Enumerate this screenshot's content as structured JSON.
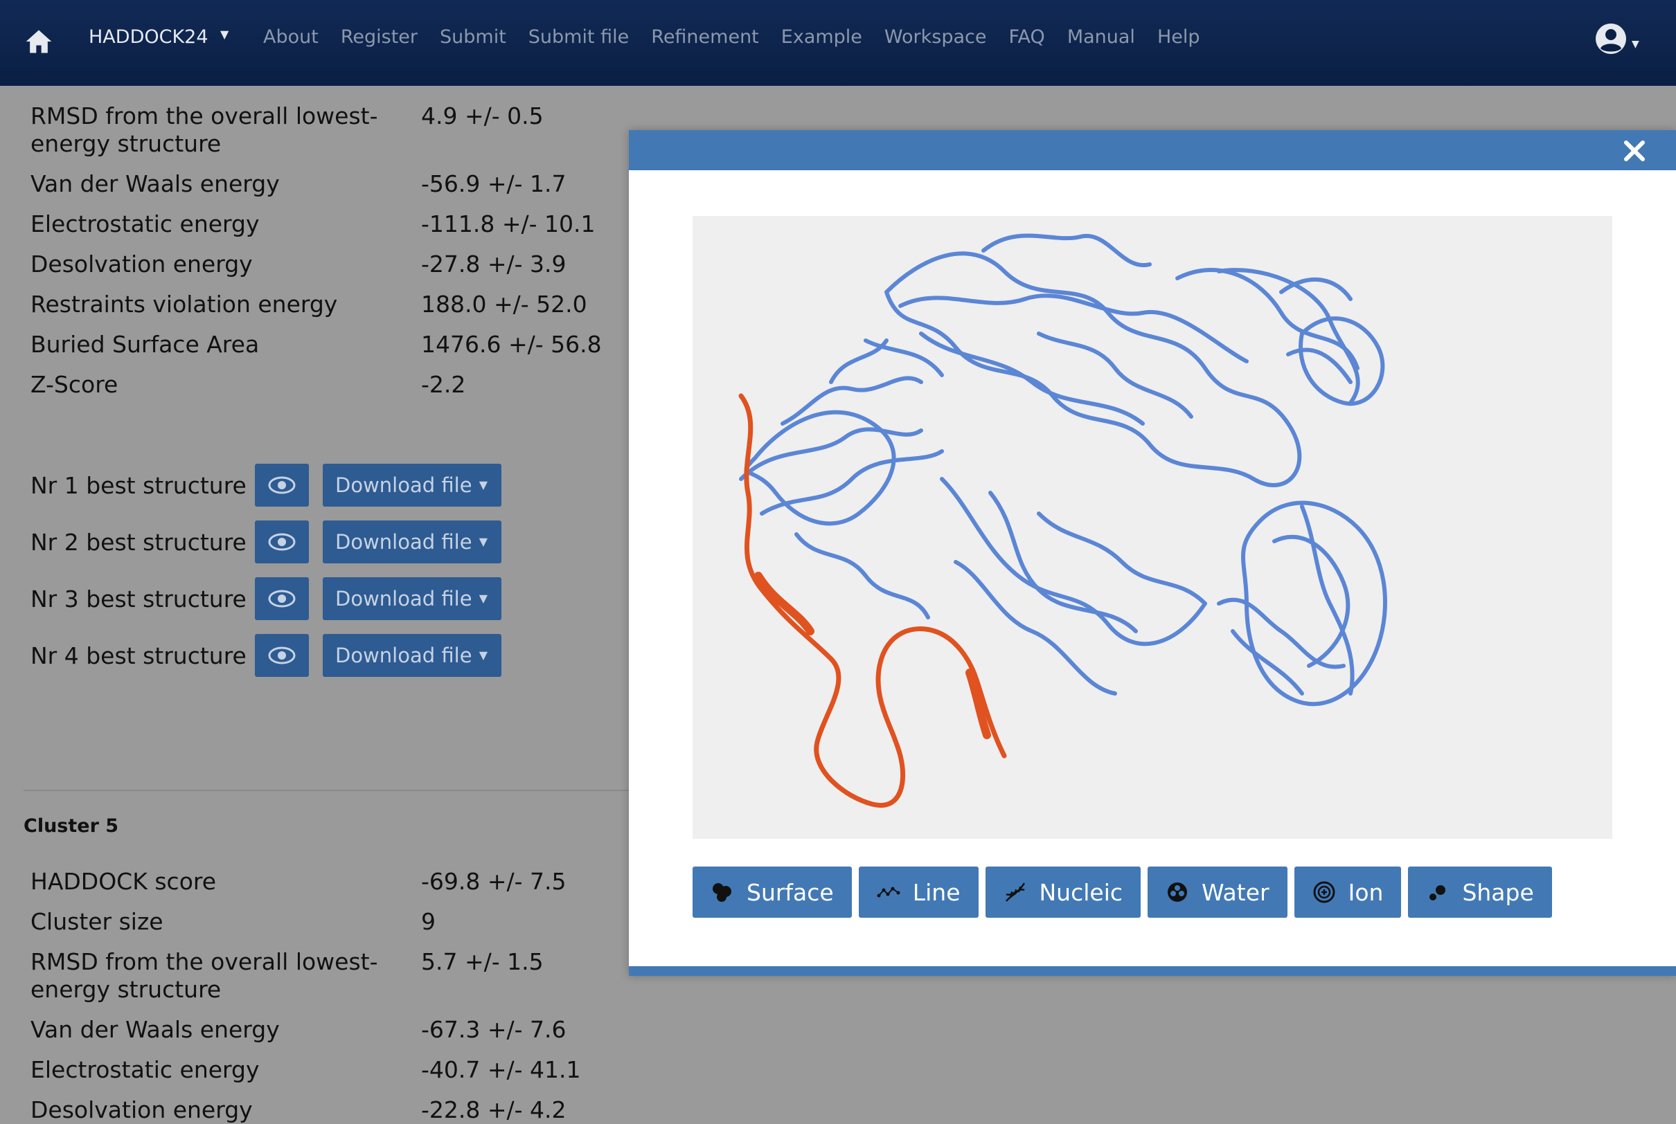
{
  "nav": {
    "brand": "HADDOCK24",
    "items": [
      "About",
      "Register",
      "Submit",
      "Submit file",
      "Refinement",
      "Example",
      "Workspace",
      "FAQ",
      "Manual",
      "Help"
    ]
  },
  "cluster4": {
    "rows": [
      {
        "label": "RMSD from the overall lowest-energy structure",
        "value": "4.9 +/- 0.5"
      },
      {
        "label": "Van der Waals energy",
        "value": "-56.9 +/- 1.7"
      },
      {
        "label": "Electrostatic energy",
        "value": "-111.8 +/- 10.1"
      },
      {
        "label": "Desolvation energy",
        "value": "-27.8 +/- 3.9"
      },
      {
        "label": "Restraints violation energy",
        "value": "188.0 +/- 52.0"
      },
      {
        "label": "Buried Surface Area",
        "value": "1476.6 +/- 56.8"
      },
      {
        "label": "Z-Score",
        "value": "-2.2"
      }
    ],
    "structures": [
      {
        "label": "Nr 1 best structure",
        "download": "Download file"
      },
      {
        "label": "Nr 2 best structure",
        "download": "Download file"
      },
      {
        "label": "Nr 3 best structure",
        "download": "Download file"
      },
      {
        "label": "Nr 4 best structure",
        "download": "Download file"
      }
    ]
  },
  "cluster5": {
    "title": "Cluster 5",
    "rows": [
      {
        "label": "HADDOCK score",
        "value": "-69.8 +/- 7.5"
      },
      {
        "label": "Cluster size",
        "value": "9"
      },
      {
        "label": "RMSD from the overall lowest-energy structure",
        "value": "5.7 +/- 1.5"
      },
      {
        "label": "Van der Waals energy",
        "value": "-67.3 +/- 7.6"
      },
      {
        "label": "Electrostatic energy",
        "value": "-40.7 +/- 41.1"
      },
      {
        "label": "Desolvation energy",
        "value": "-22.8 +/- 4.2"
      }
    ]
  },
  "viewer": {
    "buttons": [
      {
        "label": "Surface",
        "icon": "surface-icon"
      },
      {
        "label": "Line",
        "icon": "line-icon"
      },
      {
        "label": "Nucleic",
        "icon": "nucleic-icon"
      },
      {
        "label": "Water",
        "icon": "water-icon"
      },
      {
        "label": "Ion",
        "icon": "ion-icon"
      },
      {
        "label": "Shape",
        "icon": "shape-icon"
      }
    ],
    "colors": {
      "receptor": "#5b86d6",
      "ligand": "#e0521f",
      "header": "#4279b5"
    }
  }
}
